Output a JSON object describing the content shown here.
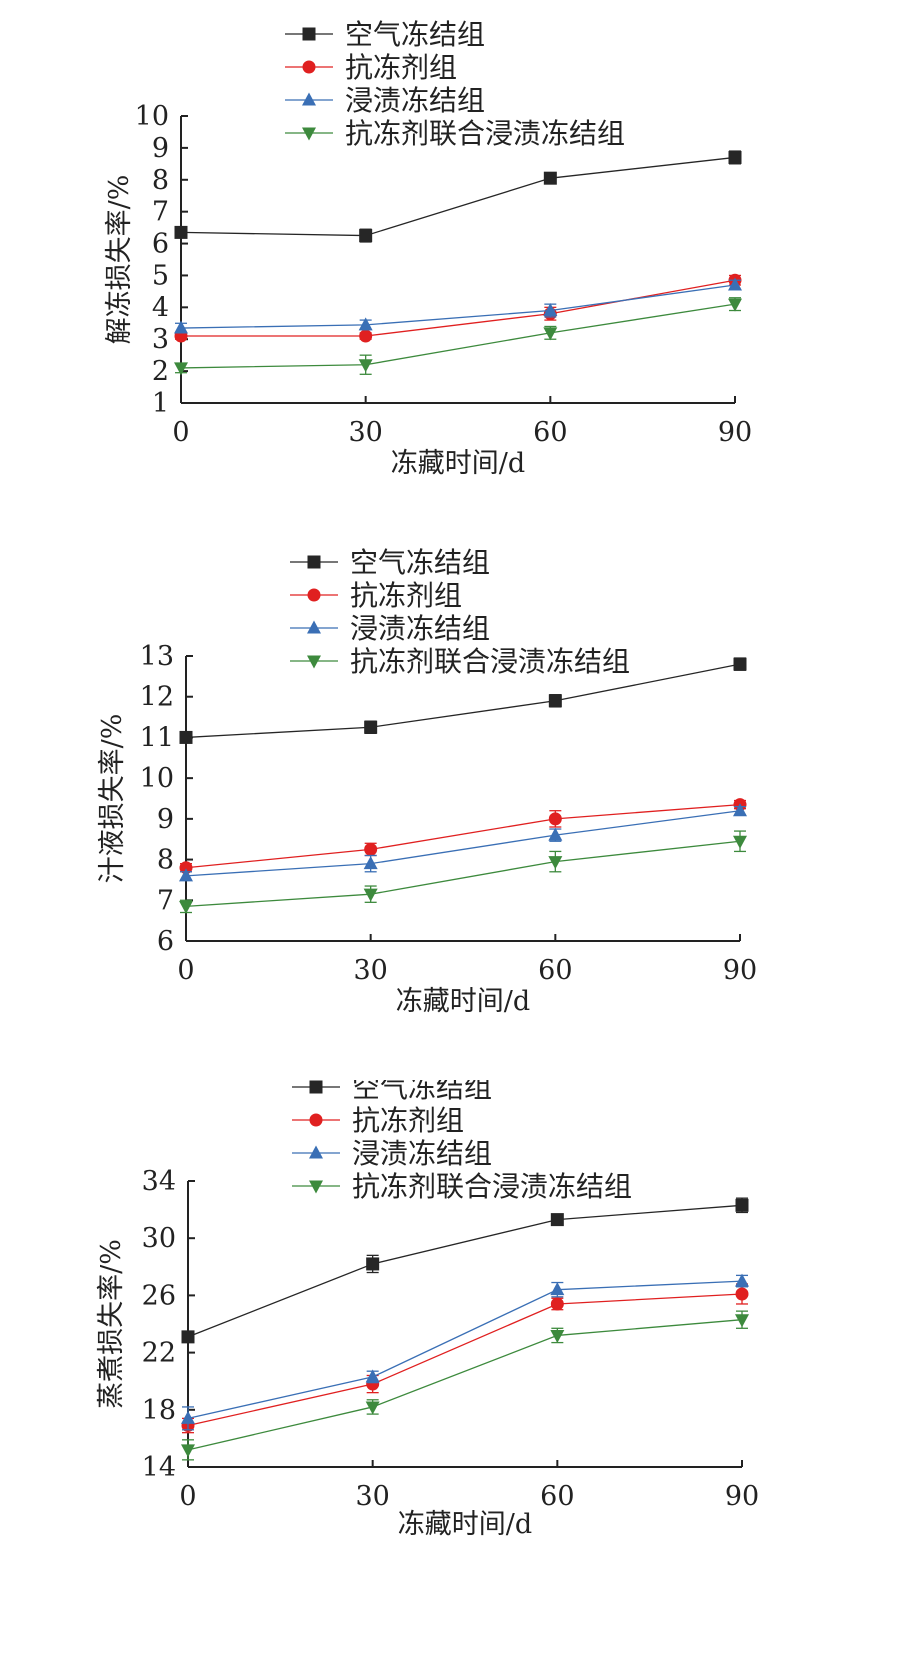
{
  "colors": {
    "air": "#262626",
    "antifreeze": "#e02020",
    "immersion": "#3a6fb5",
    "combined": "#3d8a3d",
    "axis": "#222222"
  },
  "chart_data": [
    {
      "type": "line",
      "xlabel": "冻藏时间/d",
      "ylabel": "解冻损失率/%",
      "x": [
        0,
        30,
        60,
        90
      ],
      "xticks": [
        0,
        30,
        60,
        90
      ],
      "ylim": [
        1,
        10
      ],
      "yticks": [
        1,
        2,
        3,
        4,
        5,
        6,
        7,
        8,
        9,
        10
      ],
      "legend_position": "top",
      "series": [
        {
          "name": "空气冻结组",
          "marker": "square",
          "color": "#262626",
          "values": [
            6.35,
            6.25,
            8.05,
            8.7
          ],
          "errors": [
            0.1,
            0.2,
            0.1,
            0.2
          ]
        },
        {
          "name": "抗冻剂组",
          "marker": "circle",
          "color": "#e02020",
          "values": [
            3.1,
            3.1,
            3.8,
            4.85
          ],
          "errors": [
            0.1,
            0.1,
            0.2,
            0.15
          ]
        },
        {
          "name": "浸渍冻结组",
          "marker": "triangle-up",
          "color": "#3a6fb5",
          "values": [
            3.35,
            3.45,
            3.9,
            4.7
          ],
          "errors": [
            0.15,
            0.15,
            0.2,
            0.15
          ]
        },
        {
          "name": "抗冻剂联合浸渍冻结组",
          "marker": "triangle-down",
          "color": "#3d8a3d",
          "values": [
            2.1,
            2.2,
            3.2,
            4.1
          ],
          "errors": [
            0.15,
            0.3,
            0.2,
            0.2
          ]
        }
      ]
    },
    {
      "type": "line",
      "xlabel": "冻藏时间/d",
      "ylabel": "汁液损失率/%",
      "x": [
        0,
        30,
        60,
        90
      ],
      "xticks": [
        0,
        30,
        60,
        90
      ],
      "ylim": [
        6,
        13
      ],
      "yticks": [
        6,
        7,
        8,
        9,
        10,
        11,
        12,
        13
      ],
      "legend_position": "top",
      "series": [
        {
          "name": "空气冻结组",
          "marker": "square",
          "color": "#262626",
          "values": [
            11.0,
            11.25,
            11.9,
            12.8
          ],
          "errors": [
            0.05,
            0.15,
            0.15,
            0.15
          ]
        },
        {
          "name": "抗冻剂组",
          "marker": "circle",
          "color": "#e02020",
          "values": [
            7.8,
            8.25,
            9.0,
            9.35
          ],
          "errors": [
            0.1,
            0.15,
            0.2,
            0.1
          ]
        },
        {
          "name": "浸渍冻结组",
          "marker": "triangle-up",
          "color": "#3a6fb5",
          "values": [
            7.6,
            7.9,
            8.6,
            9.2
          ],
          "errors": [
            0.1,
            0.2,
            0.15,
            0.1
          ]
        },
        {
          "name": "抗冻剂联合浸渍冻结组",
          "marker": "triangle-down",
          "color": "#3d8a3d",
          "values": [
            6.85,
            7.15,
            7.95,
            8.45
          ],
          "errors": [
            0.15,
            0.2,
            0.25,
            0.25
          ]
        }
      ]
    },
    {
      "type": "line",
      "xlabel": "冻藏时间/d",
      "ylabel": "蒸煮损失率/%",
      "x": [
        0,
        30,
        60,
        90
      ],
      "xticks": [
        0,
        30,
        60,
        90
      ],
      "ylim": [
        14,
        34
      ],
      "yticks": [
        14,
        18,
        22,
        26,
        30,
        34
      ],
      "legend_position": "top",
      "series": [
        {
          "name": "空气冻结组",
          "marker": "square",
          "color": "#262626",
          "values": [
            23.1,
            28.2,
            31.3,
            32.3
          ],
          "errors": [
            0.3,
            0.6,
            0.3,
            0.5
          ]
        },
        {
          "name": "抗冻剂组",
          "marker": "circle",
          "color": "#e02020",
          "values": [
            16.9,
            19.8,
            25.4,
            26.1
          ],
          "errors": [
            0.5,
            0.6,
            0.4,
            0.7
          ]
        },
        {
          "name": "浸渍冻结组",
          "marker": "triangle-up",
          "color": "#3a6fb5",
          "values": [
            17.4,
            20.3,
            26.4,
            27.0
          ],
          "errors": [
            0.8,
            0.4,
            0.5,
            0.4
          ]
        },
        {
          "name": "抗冻剂联合浸渍冻结组",
          "marker": "triangle-down",
          "color": "#3d8a3d",
          "values": [
            15.2,
            18.2,
            23.2,
            24.3
          ],
          "errors": [
            0.7,
            0.5,
            0.5,
            0.6
          ]
        }
      ]
    }
  ]
}
